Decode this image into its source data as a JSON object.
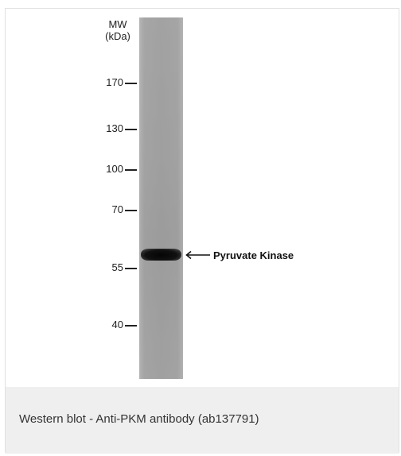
{
  "figure": {
    "mw_header": {
      "line1": "MW",
      "line2": "(kDa)"
    },
    "markers": [
      {
        "label": "170"
      },
      {
        "label": "130"
      },
      {
        "label": "100"
      },
      {
        "label": "70"
      },
      {
        "label": "55"
      },
      {
        "label": "40"
      }
    ],
    "band_label": "Pyruvate Kinase",
    "arrow_icon": "left-arrow-icon"
  },
  "caption": {
    "text": "Western blot - Anti-PKM antibody (ab137791)",
    "background_color": "#efefef"
  }
}
